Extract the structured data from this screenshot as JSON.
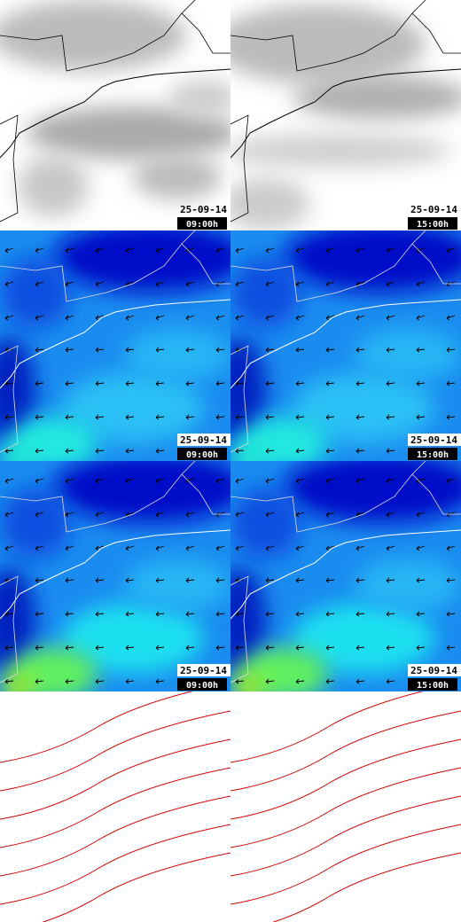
{
  "panels": [
    {
      "date": "25-09-14",
      "time": "09:00h"
    },
    {
      "date": "25-09-14",
      "time": "15:00h"
    },
    {
      "date": "25-09-14",
      "time": "09:00h"
    },
    {
      "date": "25-09-14",
      "time": "15:00h"
    },
    {
      "date": "25-09-14",
      "time": "09:00h"
    },
    {
      "date": "25-09-14",
      "time": "15:00h"
    }
  ]
}
